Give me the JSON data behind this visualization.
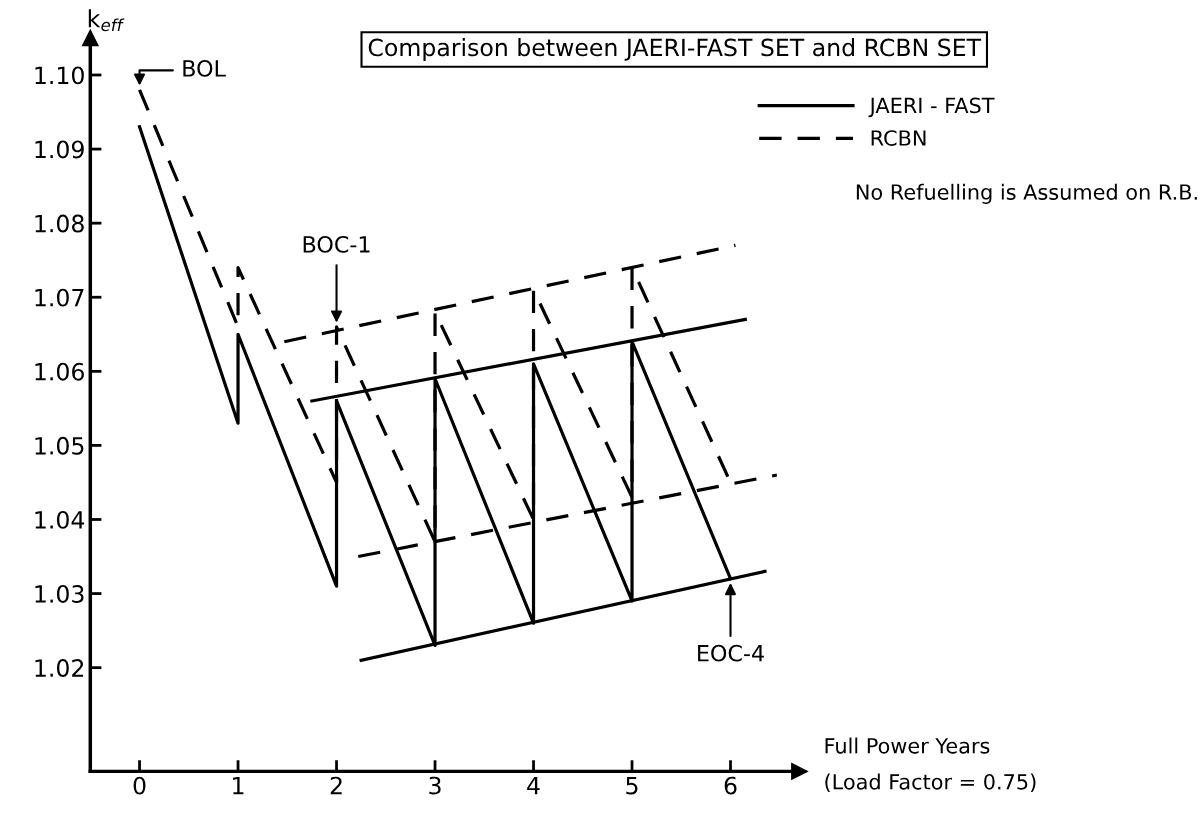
{
  "chart_data": {
    "type": "line",
    "title": "Comparison between JAERI-FAST SET and RCBN SET",
    "xlabel": "Full Power Years\n(Load Factor = 0.75)",
    "ylabel": "k$_{eff}$",
    "xlim": [
      -0.5,
      6.7
    ],
    "ylim": [
      1.006,
      1.105
    ],
    "xticks": [
      0,
      1,
      2,
      3,
      4,
      5,
      6
    ],
    "yticks": [
      1.02,
      1.03,
      1.04,
      1.05,
      1.06,
      1.07,
      1.08,
      1.09,
      {
        "value": 1.1,
        "label": "1.10"
      }
    ],
    "grid": false,
    "legend": "top right",
    "marker": "none",
    "series": [
      {
        "name": "JAERI - FAST",
        "color": "#000000",
        "line_style": "solid",
        "x": [
          0,
          1,
          1,
          2,
          2,
          3,
          3,
          4,
          4,
          5,
          5,
          6
        ],
        "values": [
          1.093,
          1.053,
          1.065,
          1.031,
          1.056,
          1.023,
          1.059,
          1.026,
          1.061,
          1.029,
          1.064,
          1.032
        ]
      },
      {
        "name": "RCBN",
        "color": "#000000",
        "line_style": "dashed",
        "x": [
          0,
          1,
          1,
          2,
          2,
          3,
          3,
          4,
          4,
          5,
          5,
          6
        ],
        "values": [
          1.098,
          1.066,
          1.074,
          1.045,
          1.066,
          1.037,
          1.068,
          1.04,
          1.071,
          1.043,
          1.074,
          1.045
        ]
      },
      {
        "color": "#000000",
        "line_style": "dashed",
        "x": [
          1.47,
          6.05
        ],
        "values": [
          1.064,
          1.077
        ]
      },
      {
        "color": "#000000",
        "line_style": "solid",
        "x": [
          1.75,
          6.15
        ],
        "values": [
          1.056,
          1.067
        ]
      },
      {
        "color": "#000000",
        "line_style": "dashed",
        "x": [
          2.22,
          6.47
        ],
        "values": [
          1.035,
          1.046
        ]
      },
      {
        "color": "#000000",
        "line_style": "solid",
        "x": [
          2.25,
          6.35
        ],
        "values": [
          1.021,
          1.033
        ]
      }
    ],
    "annotations": [
      {
        "text": "BOL",
        "x": 0,
        "y": 1.098
      },
      {
        "text": "BOC-1",
        "x": 2,
        "y": 1.066
      },
      {
        "text": "EOC-4",
        "x": 6,
        "y": 1.032
      },
      "No Refuelling is Assumed on R.B."
    ]
  }
}
